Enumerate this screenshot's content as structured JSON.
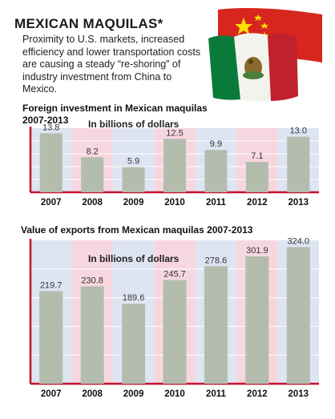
{
  "headline": "MEXICAN MAQUILAS*",
  "intro": "Proximity to U.S. markets, increased efficiency and lower transportation costs are causing a steady “re-shoring” of industry investment from China to Mexico.",
  "colors": {
    "bar": "#b4bcad",
    "band_blue": "#dde4f2",
    "band_pink": "#f6d6df",
    "axis": "#c8102e"
  },
  "chart_data": [
    {
      "type": "bar",
      "title": "Foreign investment in Mexican maquilas 2007-2013",
      "subtitle": "In billions of dollars",
      "categories": [
        "2007",
        "2008",
        "2009",
        "2010",
        "2011",
        "2012",
        "2013"
      ],
      "values": [
        13.8,
        8.2,
        5.9,
        12.5,
        9.9,
        7.1,
        13.0
      ],
      "value_labels": [
        "13.8",
        "8.2",
        "5.9",
        "12.5",
        "9.9",
        "7.1",
        "13.0"
      ],
      "ylim": [
        0,
        15
      ]
    },
    {
      "type": "bar",
      "title": "Value of exports from Mexican maquilas 2007-2013",
      "subtitle": "In billions of dollars",
      "categories": [
        "2007",
        "2008",
        "2009",
        "2010",
        "2011",
        "2012",
        "2013"
      ],
      "values": [
        219.7,
        230.8,
        189.6,
        245.7,
        278.6,
        301.9,
        324.0
      ],
      "value_labels": [
        "219.7",
        "230.8",
        "189.6",
        "245.7",
        "278.6",
        "301.9",
        "324.0"
      ],
      "ylim": [
        0,
        340
      ]
    }
  ]
}
